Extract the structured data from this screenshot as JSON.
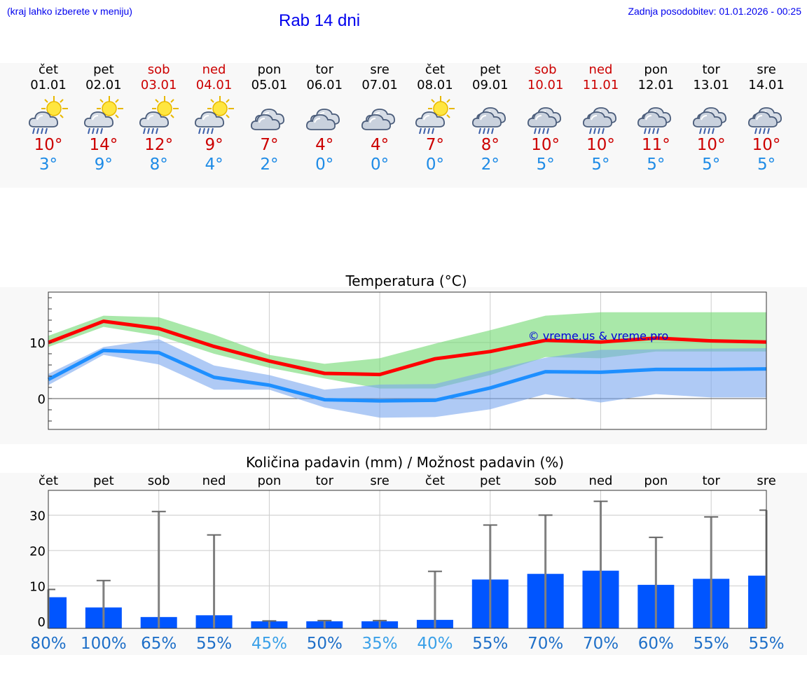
{
  "header": {
    "note": "(kraj lahko izberete v meniju)",
    "title": "Rab 14 dni",
    "last_update": "Zadnja posodobitev: 01.01.2026 - 00:25"
  },
  "days": [
    {
      "name": "čet",
      "date": "01.01",
      "icon": "sun-cloud-rain-icon",
      "max": "10°",
      "min": "3°",
      "weekend": false
    },
    {
      "name": "pet",
      "date": "02.01",
      "icon": "sun-cloud-rain-icon",
      "max": "14°",
      "min": "9°",
      "weekend": false
    },
    {
      "name": "sob",
      "date": "03.01",
      "icon": "sun-cloud-rain-icon",
      "max": "12°",
      "min": "8°",
      "weekend": true
    },
    {
      "name": "ned",
      "date": "04.01",
      "icon": "sun-cloud-rain-icon",
      "max": "9°",
      "min": "4°",
      "weekend": true
    },
    {
      "name": "pon",
      "date": "05.01",
      "icon": "cloud-icon",
      "max": "7°",
      "min": "2°",
      "weekend": false
    },
    {
      "name": "tor",
      "date": "06.01",
      "icon": "cloud-icon",
      "max": "4°",
      "min": "0°",
      "weekend": false
    },
    {
      "name": "sre",
      "date": "07.01",
      "icon": "cloud-icon",
      "max": "4°",
      "min": "0°",
      "weekend": false
    },
    {
      "name": "čet",
      "date": "08.01",
      "icon": "sun-cloud-rain-icon",
      "max": "7°",
      "min": "0°",
      "weekend": false
    },
    {
      "name": "pet",
      "date": "09.01",
      "icon": "cloud-rain-icon",
      "max": "8°",
      "min": "2°",
      "weekend": false
    },
    {
      "name": "sob",
      "date": "10.01",
      "icon": "cloud-rain-icon",
      "max": "10°",
      "min": "5°",
      "weekend": true
    },
    {
      "name": "ned",
      "date": "11.01",
      "icon": "cloud-rain-icon",
      "max": "10°",
      "min": "5°",
      "weekend": true
    },
    {
      "name": "pon",
      "date": "12.01",
      "icon": "cloud-rain-icon",
      "max": "11°",
      "min": "5°",
      "weekend": false
    },
    {
      "name": "tor",
      "date": "13.01",
      "icon": "cloud-rain-icon",
      "max": "10°",
      "min": "5°",
      "weekend": false
    },
    {
      "name": "sre",
      "date": "14.01",
      "icon": "cloud-rain-icon",
      "max": "10°",
      "min": "5°",
      "weekend": false
    }
  ],
  "chart_data": [
    {
      "type": "line",
      "title": "Temperatura (°C)",
      "watermark": "© vreme.us & vreme.pro",
      "xlabel": "",
      "ylabel": "",
      "ylim": [
        -5.5,
        19
      ],
      "yticks": [
        0,
        10
      ],
      "grid": true,
      "x": [
        "01.01",
        "02.01",
        "03.01",
        "04.01",
        "05.01",
        "06.01",
        "07.01",
        "08.01",
        "09.01",
        "10.01",
        "11.01",
        "12.01",
        "13.01",
        "14.01"
      ],
      "series": [
        {
          "name": "max",
          "color": "#ff0000",
          "values": [
            10,
            13.8,
            12.5,
            9.3,
            6.7,
            4.5,
            4.3,
            7.1,
            8.4,
            10.4,
            10.1,
            10.8,
            10.3,
            10.1
          ]
        },
        {
          "name": "min",
          "color": "#1e8fff",
          "values": [
            3.4,
            8.6,
            8.2,
            3.8,
            2.4,
            -0.2,
            -0.4,
            -0.3,
            1.9,
            4.8,
            4.7,
            5.2,
            5.2,
            5.3
          ]
        }
      ],
      "ranges": [
        {
          "name": "max-range",
          "color": "#6fd86f",
          "low": [
            9.2,
            12.8,
            11.2,
            8.0,
            5.5,
            3.6,
            1.8,
            1.8,
            4.2,
            7.4,
            7.2,
            8.4,
            8.4,
            8.4
          ],
          "high": [
            11.2,
            14.8,
            14.5,
            11.4,
            7.8,
            6.2,
            7.2,
            9.8,
            12.2,
            14.8,
            15.4,
            15.4,
            15.4,
            15.4
          ]
        },
        {
          "name": "min-range",
          "color": "#7aa6ee",
          "low": [
            2.4,
            7.8,
            6.1,
            1.6,
            1.6,
            -1.6,
            -3.4,
            -3.3,
            -1.9,
            0.8,
            -0.7,
            0.8,
            0.2,
            0.2
          ],
          "high": [
            4.4,
            9.2,
            10.6,
            5.9,
            4.2,
            1.6,
            2.5,
            2.6,
            5.0,
            7.3,
            8.7,
            8.8,
            8.9,
            9.0
          ]
        }
      ]
    },
    {
      "type": "bar",
      "title": "Količina padavin (mm) / Možnost padavin (%)",
      "categories": [
        "čet",
        "pet",
        "sob",
        "ned",
        "pon",
        "tor",
        "sre",
        "čet",
        "pet",
        "sob",
        "ned",
        "pon",
        "tor",
        "sre"
      ],
      "values": [
        6.8,
        3.9,
        1.2,
        1.7,
        0,
        0,
        0,
        0.4,
        11.8,
        13.4,
        14.3,
        10.3,
        12.0,
        12.9
      ],
      "error_max": [
        9.0,
        11.5,
        31.0,
        24.4,
        0.1,
        0.2,
        0.2,
        14.1,
        27.2,
        30.0,
        33.9,
        23.7,
        29.5,
        31.4
      ],
      "probability": [
        "80%",
        "100%",
        "65%",
        "55%",
        "45%",
        "50%",
        "35%",
        "40%",
        "55%",
        "70%",
        "70%",
        "60%",
        "55%",
        "55%"
      ],
      "probability_colors": [
        "#1e6fc8",
        "#1e6fc8",
        "#1e6fc8",
        "#1e6fc8",
        "#3aa0e8",
        "#1e6fc8",
        "#3aa0e8",
        "#3aa0e8",
        "#1e6fc8",
        "#1e6fc8",
        "#1e6fc8",
        "#1e6fc8",
        "#1e6fc8",
        "#1e6fc8"
      ],
      "ylim": [
        -2,
        37
      ],
      "yticks": [
        0,
        10,
        20,
        30
      ],
      "bar_color": "#0055ff",
      "whisker_color": "#808080",
      "grid": true
    }
  ]
}
